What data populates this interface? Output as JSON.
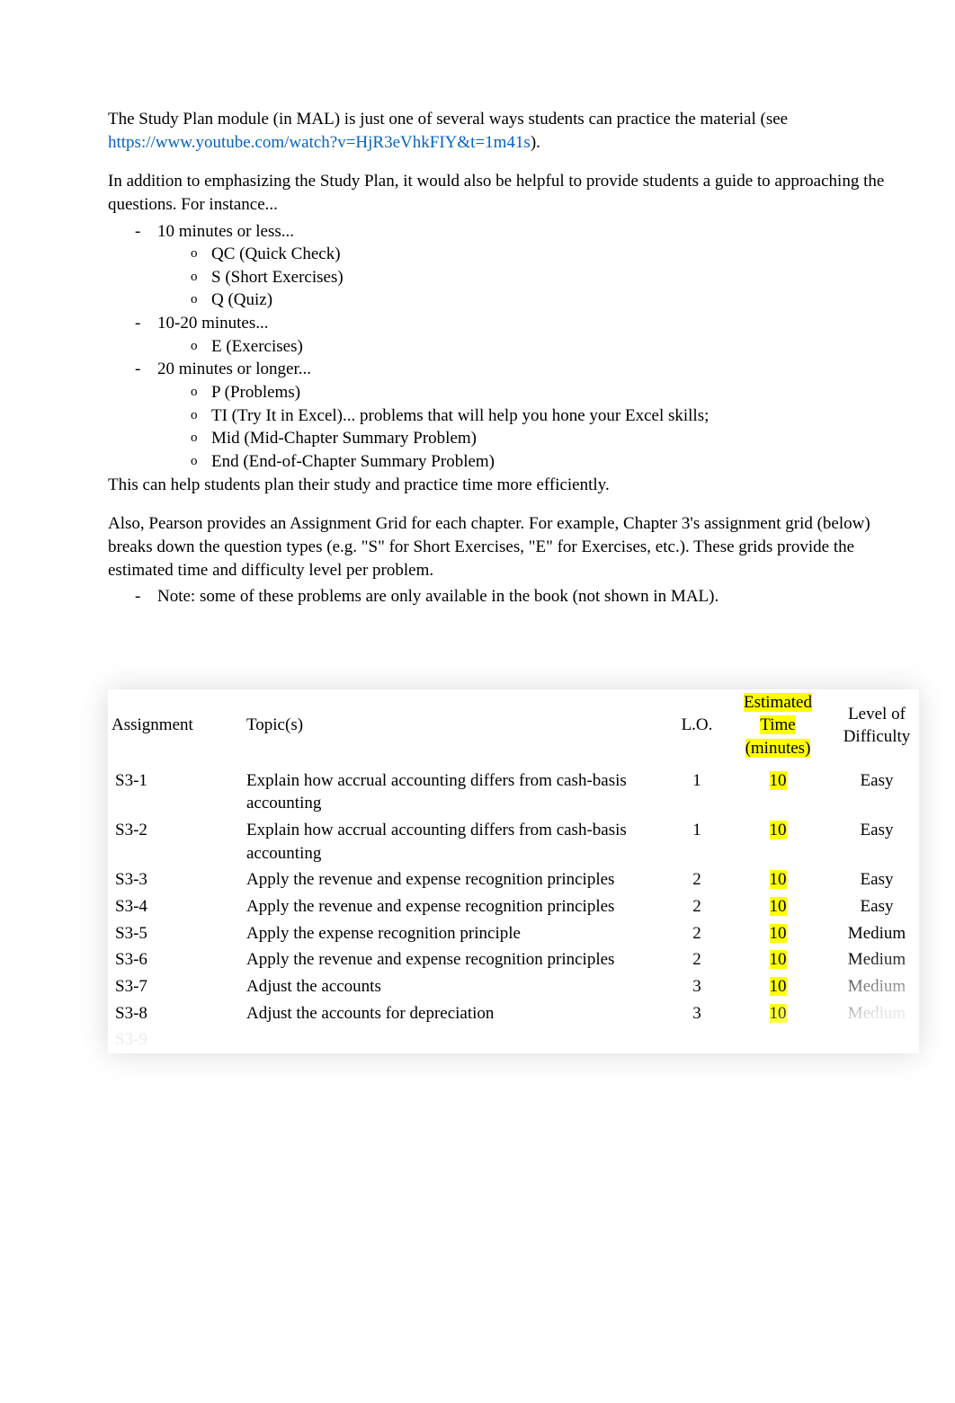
{
  "intro": {
    "p1a": "The Study Plan module (in MAL) is just one of several ways students can practice the material (see ",
    "link": "https://www.youtube.com/watch?v=HjR3eVhkFIY&t=1m41s",
    "p1b": ").",
    "p2": "In addition to emphasizing the Study Plan, it would also be helpful to provide students a guide to approaching the questions. For instance..."
  },
  "timing": {
    "g1": "10 minutes or less...",
    "g1_items": {
      "a": "QC (Quick Check)",
      "b": "S (Short Exercises)",
      "c": "Q (Quiz)"
    },
    "g2": "10-20 minutes...",
    "g2_items": {
      "a": "E (Exercises)"
    },
    "g3": "20 minutes or longer...",
    "g3_items": {
      "a": "P (Problems)",
      "b": "TI (Try It in Excel)... problems that will help you hone your Excel skills;",
      "c": "Mid (Mid-Chapter Summary Problem)",
      "d": "End (End-of-Chapter Summary Problem)"
    }
  },
  "followup": {
    "p3": "This can help students plan their study and practice time more efficiently.",
    "p4": "Also, Pearson provides an Assignment Grid for each chapter. For example, Chapter 3's assignment grid (below) breaks down the question types (e.g. \"S\" for Short Exercises, \"E\" for Exercises, etc.). These grids provide the estimated time and difficulty level per problem.",
    "note": "Note: some of these problems are only available in the book (not shown in MAL)."
  },
  "table": {
    "headers": {
      "assignment": "Assignment",
      "topic": "Topic(s)",
      "lo": "L.O.",
      "time": "Estimated Time (minutes)",
      "diff": "Level of Difficulty"
    },
    "rows": [
      {
        "a": "S3-1",
        "t": "Explain how accrual accounting differs from cash-basis accounting",
        "lo": "1",
        "time": "10",
        "d": "Easy"
      },
      {
        "a": "S3-2",
        "t": "Explain how accrual accounting differs from cash-basis accounting",
        "lo": "1",
        "time": "10",
        "d": "Easy"
      },
      {
        "a": "S3-3",
        "t": "Apply the revenue and expense recognition principles",
        "lo": "2",
        "time": "10",
        "d": "Easy"
      },
      {
        "a": "S3-4",
        "t": "Apply the revenue and expense recognition principles",
        "lo": "2",
        "time": "10",
        "d": "Easy"
      },
      {
        "a": "S3-5",
        "t": "Apply the expense recognition principle",
        "lo": "2",
        "time": "10",
        "d": "Medium"
      },
      {
        "a": "S3-6",
        "t": "Apply the revenue and expense recognition principles",
        "lo": "2",
        "time": "10",
        "d": "Medium"
      },
      {
        "a": "S3-7",
        "t": "Adjust the accounts",
        "lo": "3",
        "time": "10",
        "d": "Medium"
      },
      {
        "a": "S3-8",
        "t": "Adjust the accounts for depreciation",
        "lo": "3",
        "time": "10",
        "d": "Medium"
      },
      {
        "a": "S3-9",
        "t": "",
        "lo": "",
        "time": "",
        "d": ""
      }
    ],
    "highlight_color": "#ffff00"
  }
}
